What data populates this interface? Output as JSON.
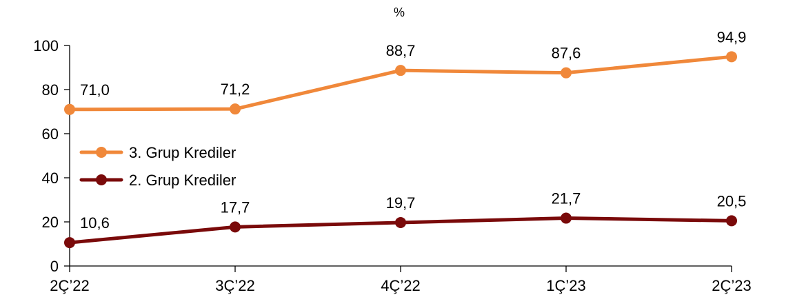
{
  "chart_data": {
    "type": "line",
    "unit_label": "%",
    "categories": [
      "2Ç’22",
      "3Ç’22",
      "4Ç’22",
      "1Ç’23",
      "2Ç’23"
    ],
    "ylim": [
      0,
      100
    ],
    "yticks": [
      0,
      20,
      40,
      60,
      80,
      100
    ],
    "ytick_labels": [
      "0",
      "20",
      "40",
      "60",
      "80",
      "100"
    ],
    "grid": false,
    "legend_position": "left-middle",
    "series": [
      {
        "name": "3. Grup Krediler",
        "color": "#F0883A",
        "values": [
          71.0,
          71.2,
          88.7,
          87.6,
          94.9
        ],
        "labels": [
          "71,0",
          "71,2",
          "88,7",
          "87,6",
          "94,9"
        ]
      },
      {
        "name": "2. Grup Krediler",
        "color": "#7A0A0A",
        "values": [
          10.6,
          17.7,
          19.7,
          21.7,
          20.5
        ],
        "labels": [
          "10,6",
          "17,7",
          "19,7",
          "21,7",
          "20,5"
        ]
      }
    ]
  }
}
